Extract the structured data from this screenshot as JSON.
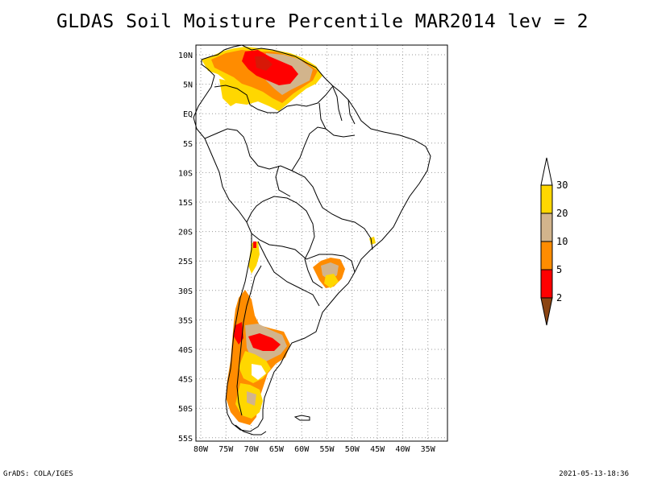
{
  "title": "GLDAS Soil Moisture Percentile MAR2014 lev = 2",
  "axes": {
    "x_ticks": [
      "80W",
      "75W",
      "70W",
      "65W",
      "60W",
      "55W",
      "50W",
      "45W",
      "40W",
      "35W"
    ],
    "y_ticks": [
      "10N",
      "5N",
      "EQ",
      "5S",
      "10S",
      "15S",
      "20S",
      "25S",
      "30S",
      "35S",
      "40S",
      "45S",
      "50S",
      "55S"
    ]
  },
  "colorbar": {
    "levels": [
      "2",
      "5",
      "10",
      "20",
      "30"
    ],
    "colors": {
      "below_2": "#8b4513",
      "2_5": "#ff0000",
      "5_10": "#ff8c00",
      "10_20": "#d2b48c",
      "20_30": "#ffd700",
      "above_30": "#ffffff"
    }
  },
  "footer": {
    "left": "GrADS: COLA/IGES",
    "right": "2021-05-13-18:36"
  }
}
